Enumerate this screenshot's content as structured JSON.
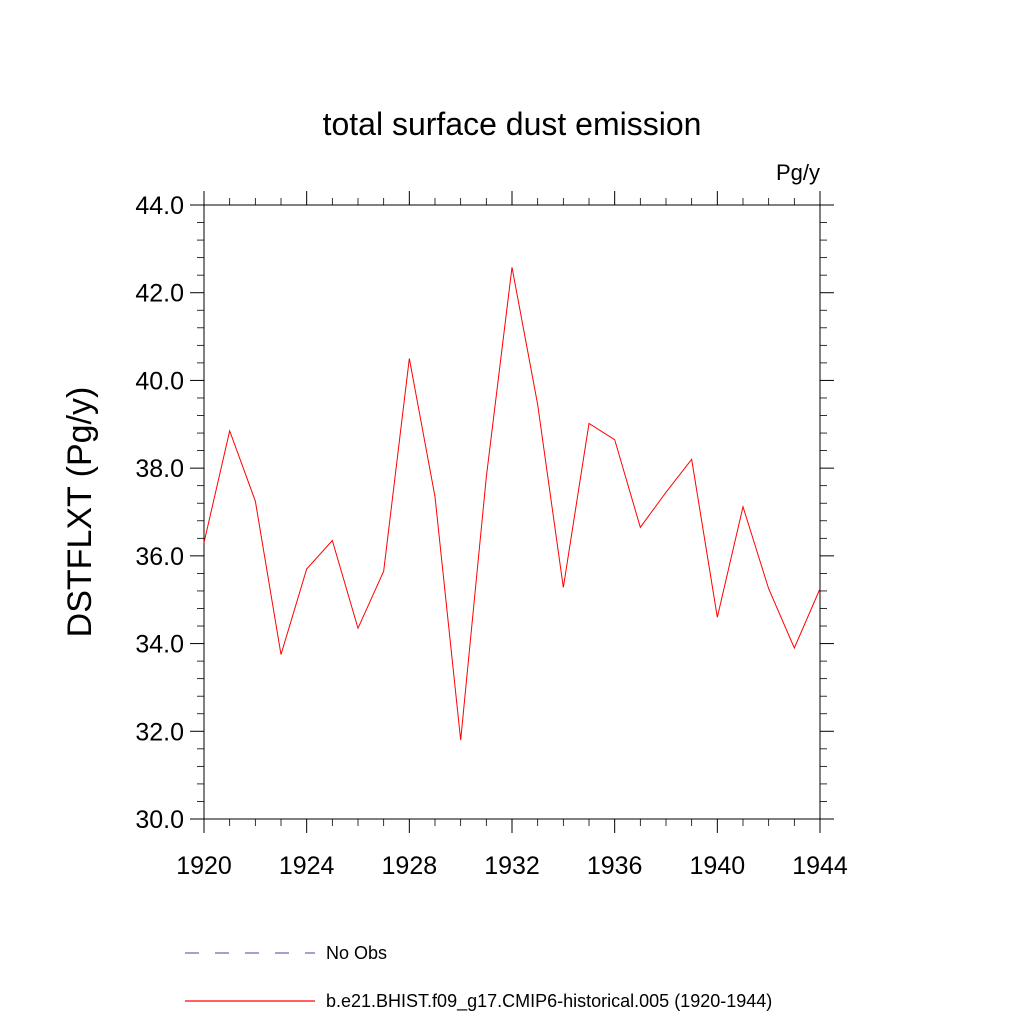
{
  "chart_data": {
    "type": "line",
    "title": "total surface dust emission",
    "units_label": "Pg/y",
    "xlabel": "",
    "ylabel": "DSTFLXT  (Pg/y)",
    "xlim": [
      1920,
      1944
    ],
    "ylim": [
      30.0,
      44.0
    ],
    "x_ticks": [
      1920,
      1924,
      1928,
      1932,
      1936,
      1940,
      1944
    ],
    "x_tick_labels": [
      "1920",
      "1924",
      "1928",
      "1932",
      "1936",
      "1940",
      "1944"
    ],
    "y_ticks": [
      30,
      32,
      34,
      36,
      38,
      40,
      42,
      44
    ],
    "y_tick_labels": [
      "30.0",
      "32.0",
      "34.0",
      "36.0",
      "38.0",
      "40.0",
      "42.0",
      "44.0"
    ],
    "x_minor_step": 1,
    "y_minor_step": 0.4,
    "grid": false,
    "legend_position": "bottom",
    "series": [
      {
        "name": "b.e21.BHIST.f09_g17.CMIP6-historical.005 (1920-1944)",
        "color": "#ff0000",
        "style": "solid",
        "x": [
          1920,
          1921,
          1922,
          1923,
          1924,
          1925,
          1926,
          1927,
          1928,
          1929,
          1930,
          1931,
          1932,
          1933,
          1934,
          1935,
          1936,
          1937,
          1938,
          1939,
          1940,
          1941,
          1942,
          1943,
          1944
        ],
        "values": [
          36.3,
          38.85,
          37.25,
          33.75,
          35.7,
          36.35,
          34.35,
          35.65,
          40.5,
          37.35,
          31.8,
          37.8,
          42.58,
          39.45,
          35.28,
          39.02,
          38.65,
          36.65,
          37.45,
          38.2,
          34.6,
          37.12,
          35.25,
          33.9,
          35.25
        ]
      }
    ],
    "legend": [
      {
        "label": "No Obs",
        "color": "#6a6ab0",
        "style": "dashed"
      },
      {
        "label": "b.e21.BHIST.f09_g17.CMIP6-historical.005 (1920-1944)",
        "color": "#ff0000",
        "style": "solid"
      }
    ]
  }
}
